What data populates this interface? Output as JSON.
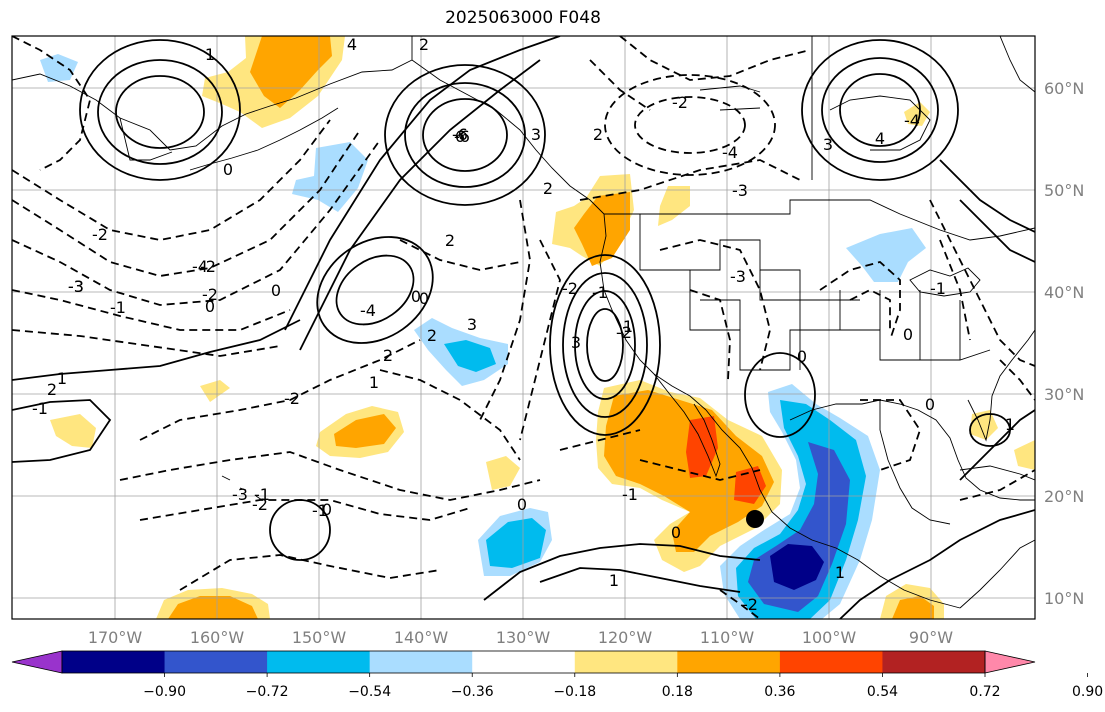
{
  "title": "2025063000 F048",
  "longitude_labels": [
    "170°W",
    "160°W",
    "150°W",
    "140°W",
    "130°W",
    "120°W",
    "110°W",
    "100°W",
    "90°W"
  ],
  "latitude_labels": [
    "60°N",
    "50°N",
    "40°N",
    "30°N",
    "20°N",
    "10°N"
  ],
  "colorbar": {
    "ticks": [
      "−0.90",
      "−0.72",
      "−0.54",
      "−0.36",
      "−0.18",
      "0.18",
      "0.36",
      "0.54",
      "0.72",
      "0.90"
    ],
    "colors": [
      "#9933cc",
      "#000088",
      "#3355cc",
      "#00bbee",
      "#aaddff",
      "#ffffff",
      "#ffe680",
      "#ffa500",
      "#ff4400",
      "#b22222",
      "#ff88aa"
    ]
  },
  "shading_colors": {
    "light_blue": "#aaddff",
    "blue": "#00bbee",
    "mid_blue": "#3355cc",
    "navy": "#000088",
    "yellow": "#ffe680",
    "orange": "#ffa500",
    "red": "#ff4400"
  },
  "contour_labels": [
    "4",
    "2",
    "6",
    "3",
    "1",
    "0",
    "-2",
    "-3",
    "-4",
    "-1",
    "2",
    "-6",
    "1",
    "0",
    "-1",
    "-2",
    "-3",
    "-4",
    "0",
    "-2",
    "-3",
    "-2",
    "-1",
    "0",
    "1",
    "2",
    "3",
    "2",
    "0",
    "-2",
    "-4",
    "-3",
    "-3",
    "-2",
    "-1",
    "0",
    "1",
    "-2",
    "2",
    "-6",
    "-4",
    "3",
    "4",
    "0",
    "0",
    "-1",
    "0",
    "1",
    "-2",
    "-1",
    "1",
    "0",
    "-2",
    "2",
    "-1",
    "2",
    "3",
    "0",
    "1"
  ],
  "marker": "storm-center-dot"
}
